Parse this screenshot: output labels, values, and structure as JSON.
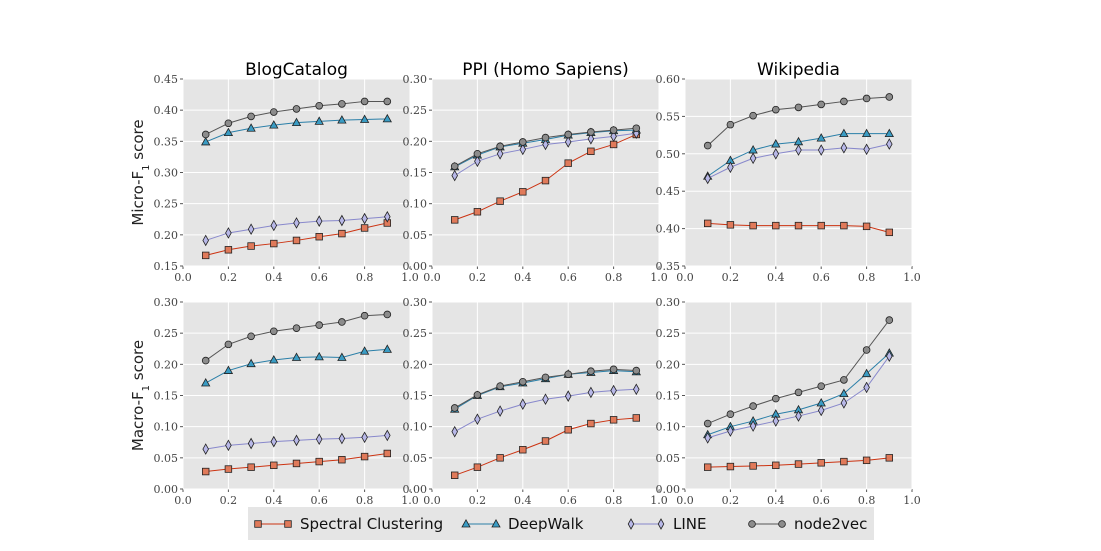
{
  "chart_data": {
    "type": "line",
    "layout": "2x3 grid",
    "x": [
      0.1,
      0.2,
      0.3,
      0.4,
      0.5,
      0.6,
      0.7,
      0.8,
      0.9
    ],
    "xlim": [
      0.0,
      1.0
    ],
    "xticks": [
      "0.0",
      "0.2",
      "0.4",
      "0.6",
      "0.8",
      "1.0"
    ],
    "column_titles": [
      "BlogCatalog",
      "PPI (Homo Sapiens)",
      "Wikipedia"
    ],
    "row_labels": [
      "Micro-F",
      "Macro-F"
    ],
    "row_label_subscript": "1",
    "row_label_suffix": " score",
    "series_styles": [
      {
        "name": "Spectral Clustering",
        "color": "#cc3311",
        "fill": "#e07a5a",
        "marker": "square"
      },
      {
        "name": "DeepWalk",
        "color": "#2a7fa8",
        "fill": "#3a9cc4",
        "marker": "triangle"
      },
      {
        "name": "LINE",
        "color": "#8888cc",
        "fill": "#b8b8e8",
        "marker": "diamond"
      },
      {
        "name": "node2vec",
        "color": "#555555",
        "fill": "#8c8c8c",
        "marker": "circle"
      }
    ],
    "legend": {
      "placement": "bottom-center",
      "entries": [
        "Spectral Clustering",
        "DeepWalk",
        "LINE",
        "node2vec"
      ]
    },
    "panels": [
      {
        "row": "Micro-F1",
        "column": "BlogCatalog",
        "ylim": [
          0.15,
          0.45
        ],
        "yticks": [
          "0.15",
          "0.20",
          "0.25",
          "0.30",
          "0.35",
          "0.40",
          "0.45"
        ],
        "series": [
          {
            "name": "Spectral Clustering",
            "values": [
              0.167,
              0.176,
              0.182,
              0.186,
              0.191,
              0.197,
              0.202,
              0.211,
              0.219
            ]
          },
          {
            "name": "DeepWalk",
            "values": [
              0.349,
              0.364,
              0.371,
              0.376,
              0.38,
              0.382,
              0.384,
              0.385,
              0.386
            ]
          },
          {
            "name": "LINE",
            "values": [
              0.191,
              0.203,
              0.209,
              0.215,
              0.219,
              0.222,
              0.223,
              0.226,
              0.229
            ]
          },
          {
            "name": "node2vec",
            "values": [
              0.361,
              0.379,
              0.39,
              0.397,
              0.402,
              0.407,
              0.41,
              0.414,
              0.414
            ]
          }
        ]
      },
      {
        "row": "Micro-F1",
        "column": "PPI (Homo Sapiens)",
        "ylim": [
          0.0,
          0.3
        ],
        "yticks": [
          "0.00",
          "0.05",
          "0.10",
          "0.15",
          "0.20",
          "0.25",
          "0.30"
        ],
        "series": [
          {
            "name": "Spectral Clustering",
            "values": [
              0.074,
              0.087,
              0.104,
              0.119,
              0.137,
              0.165,
              0.184,
              0.195,
              0.211
            ]
          },
          {
            "name": "DeepWalk",
            "values": [
              0.159,
              0.178,
              0.191,
              0.197,
              0.203,
              0.21,
              0.214,
              0.217,
              0.218
            ]
          },
          {
            "name": "LINE",
            "values": [
              0.145,
              0.168,
              0.18,
              0.187,
              0.195,
              0.199,
              0.204,
              0.208,
              0.213
            ]
          },
          {
            "name": "node2vec",
            "values": [
              0.16,
              0.18,
              0.192,
              0.199,
              0.206,
              0.211,
              0.215,
              0.218,
              0.221
            ]
          }
        ]
      },
      {
        "row": "Micro-F1",
        "column": "Wikipedia",
        "ylim": [
          0.35,
          0.6
        ],
        "yticks": [
          "0.35",
          "0.40",
          "0.45",
          "0.50",
          "0.55",
          "0.60"
        ],
        "series": [
          {
            "name": "Spectral Clustering",
            "values": [
              0.407,
              0.405,
              0.404,
              0.404,
              0.404,
              0.404,
              0.404,
              0.403,
              0.395
            ]
          },
          {
            "name": "DeepWalk",
            "values": [
              0.47,
              0.491,
              0.505,
              0.513,
              0.516,
              0.521,
              0.527,
              0.527,
              0.527
            ]
          },
          {
            "name": "LINE",
            "values": [
              0.467,
              0.482,
              0.494,
              0.5,
              0.505,
              0.505,
              0.508,
              0.506,
              0.513
            ]
          },
          {
            "name": "node2vec",
            "values": [
              0.511,
              0.539,
              0.551,
              0.559,
              0.562,
              0.566,
              0.57,
              0.574,
              0.576
            ]
          }
        ]
      },
      {
        "row": "Macro-F1",
        "column": "BlogCatalog",
        "ylim": [
          0.0,
          0.3
        ],
        "yticks": [
          "0.00",
          "0.05",
          "0.10",
          "0.15",
          "0.20",
          "0.25",
          "0.30"
        ],
        "series": [
          {
            "name": "Spectral Clustering",
            "values": [
              0.028,
              0.032,
              0.035,
              0.038,
              0.041,
              0.044,
              0.047,
              0.052,
              0.057
            ]
          },
          {
            "name": "DeepWalk",
            "values": [
              0.17,
              0.19,
              0.201,
              0.207,
              0.211,
              0.212,
              0.211,
              0.221,
              0.224
            ]
          },
          {
            "name": "LINE",
            "values": [
              0.064,
              0.07,
              0.073,
              0.076,
              0.078,
              0.08,
              0.081,
              0.083,
              0.086
            ]
          },
          {
            "name": "node2vec",
            "values": [
              0.206,
              0.232,
              0.245,
              0.253,
              0.258,
              0.263,
              0.268,
              0.278,
              0.28
            ]
          }
        ]
      },
      {
        "row": "Macro-F1",
        "column": "PPI (Homo Sapiens)",
        "ylim": [
          0.0,
          0.3
        ],
        "yticks": [
          "0.00",
          "0.05",
          "0.10",
          "0.15",
          "0.20",
          "0.25",
          "0.30"
        ],
        "series": [
          {
            "name": "Spectral Clustering",
            "values": [
              0.022,
              0.035,
              0.05,
              0.063,
              0.077,
              0.095,
              0.105,
              0.111,
              0.114
            ]
          },
          {
            "name": "DeepWalk",
            "values": [
              0.128,
              0.15,
              0.164,
              0.17,
              0.177,
              0.184,
              0.187,
              0.19,
              0.188
            ]
          },
          {
            "name": "LINE",
            "values": [
              0.092,
              0.112,
              0.125,
              0.136,
              0.144,
              0.149,
              0.155,
              0.158,
              0.16
            ]
          },
          {
            "name": "node2vec",
            "values": [
              0.13,
              0.151,
              0.165,
              0.172,
              0.179,
              0.184,
              0.189,
              0.192,
              0.19
            ]
          }
        ]
      },
      {
        "row": "Macro-F1",
        "column": "Wikipedia",
        "ylim": [
          0.0,
          0.3
        ],
        "yticks": [
          "0.00",
          "0.05",
          "0.10",
          "0.15",
          "0.20",
          "0.25",
          "0.30"
        ],
        "series": [
          {
            "name": "Spectral Clustering",
            "values": [
              0.035,
              0.036,
              0.037,
              0.038,
              0.04,
              0.042,
              0.044,
              0.046,
              0.05
            ]
          },
          {
            "name": "DeepWalk",
            "values": [
              0.087,
              0.1,
              0.109,
              0.12,
              0.127,
              0.138,
              0.153,
              0.185,
              0.218
            ]
          },
          {
            "name": "LINE",
            "values": [
              0.082,
              0.093,
              0.101,
              0.109,
              0.117,
              0.126,
              0.138,
              0.163,
              0.213
            ]
          },
          {
            "name": "node2vec",
            "values": [
              0.105,
              0.12,
              0.133,
              0.145,
              0.155,
              0.165,
              0.175,
              0.223,
              0.271
            ]
          }
        ]
      }
    ]
  }
}
